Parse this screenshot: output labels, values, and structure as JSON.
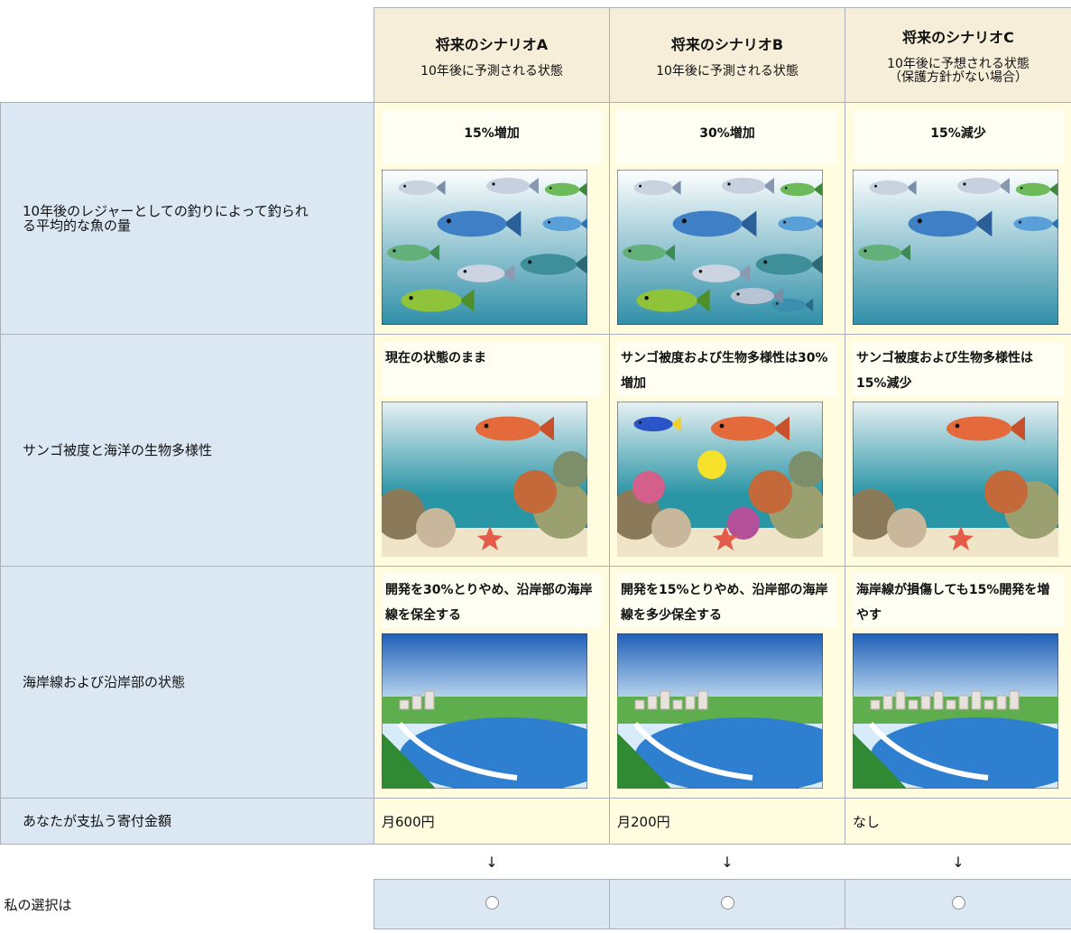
{
  "header": {
    "columns": [
      {
        "title": "将来のシナリオA",
        "subtitle": [
          "10年後に予測される状態"
        ]
      },
      {
        "title": "将来のシナリオB",
        "subtitle": [
          "10年後に予測される状態"
        ]
      },
      {
        "title": "将来のシナリオC",
        "subtitle": [
          "10年後に予想される状態",
          "（保護方針がない場合）"
        ]
      }
    ]
  },
  "rows": [
    {
      "label": "10年後のレジャーとしての釣りによって釣られる平均的な魚の量",
      "cells": [
        "15%増加",
        "30%増加",
        "15%減少"
      ]
    },
    {
      "label": "サンゴ被度と海洋の生物多様性",
      "cells": [
        "現在の状態のまま",
        "サンゴ被度および生物多様性は30%増加",
        "サンゴ被度および生物多様性は15%減少"
      ]
    },
    {
      "label": "海岸線および沿岸部の状態",
      "cells": [
        "開発を30%とりやめ、沿岸部の海岸線を保全する",
        "開発を15%とりやめ、沿岸部の海岸線を多少保全する",
        "海岸線が損傷しても15%開発を増やす"
      ]
    }
  ],
  "payment": {
    "label": "あなたが支払う寄付金額",
    "cells": [
      "月600円",
      "月200円",
      "なし"
    ]
  },
  "arrows": [
    "↓",
    "↓",
    "↓"
  ],
  "choice": {
    "label": "私の選択は"
  }
}
